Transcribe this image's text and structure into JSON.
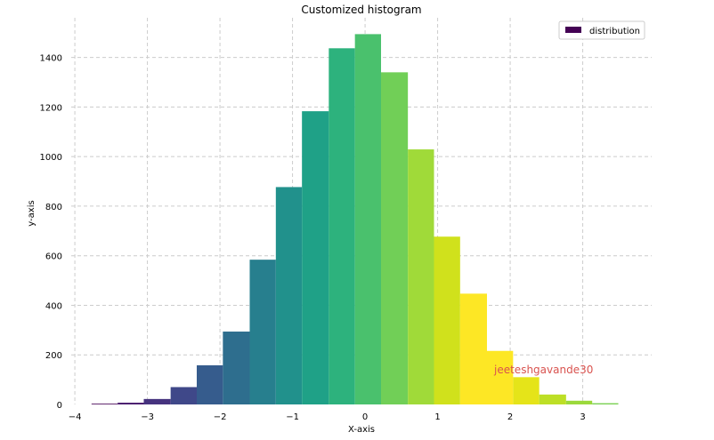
{
  "chart_data": {
    "type": "bar",
    "title": "Customized histogram",
    "xlabel": "X-axis",
    "ylabel": "y-axis",
    "xlim": [
      -4.05,
      3.95
    ],
    "ylim": [
      0,
      1560
    ],
    "grid": true,
    "legend": {
      "label": "distribution",
      "color": "#440154",
      "position": "top-right"
    },
    "x_ticks": [
      -4,
      -3,
      -2,
      -1,
      0,
      1,
      2,
      3
    ],
    "x_tick_labels": [
      "−4",
      "−3",
      "−2",
      "−1",
      "0",
      "1",
      "2",
      "3"
    ],
    "y_ticks": [
      0,
      200,
      400,
      600,
      800,
      1000,
      1200,
      1400
    ],
    "y_tick_labels": [
      "0",
      "200",
      "400",
      "600",
      "800",
      "1000",
      "1200",
      "1400"
    ],
    "bin_edges": [
      -3.77,
      -3.41,
      -3.05,
      -2.68,
      -2.32,
      -1.96,
      -1.59,
      -1.23,
      -0.87,
      -0.5,
      -0.14,
      0.22,
      0.59,
      0.95,
      1.31,
      1.68,
      2.04,
      2.4,
      2.77,
      3.13,
      3.49
    ],
    "counts": [
      3,
      7,
      22,
      70,
      158,
      294,
      584,
      877,
      1183,
      1437,
      1494,
      1340,
      1029,
      677,
      447,
      216,
      110,
      40,
      15,
      5
    ],
    "bar_colors": [
      "#440154",
      "#481b6d",
      "#46337e",
      "#3f4889",
      "#365c8d",
      "#2e6e8e",
      "#277f8e",
      "#21918c",
      "#1fa187",
      "#2db27d",
      "#4ac16d",
      "#71cf57",
      "#a0da39",
      "#d0e11c",
      "#fde725",
      "#fde725",
      "#e5e419",
      "#bddf26",
      "#9bd93c",
      "#7ad151"
    ],
    "watermark": {
      "text": "jeeteshgavande30",
      "color": "#d9534f"
    }
  }
}
